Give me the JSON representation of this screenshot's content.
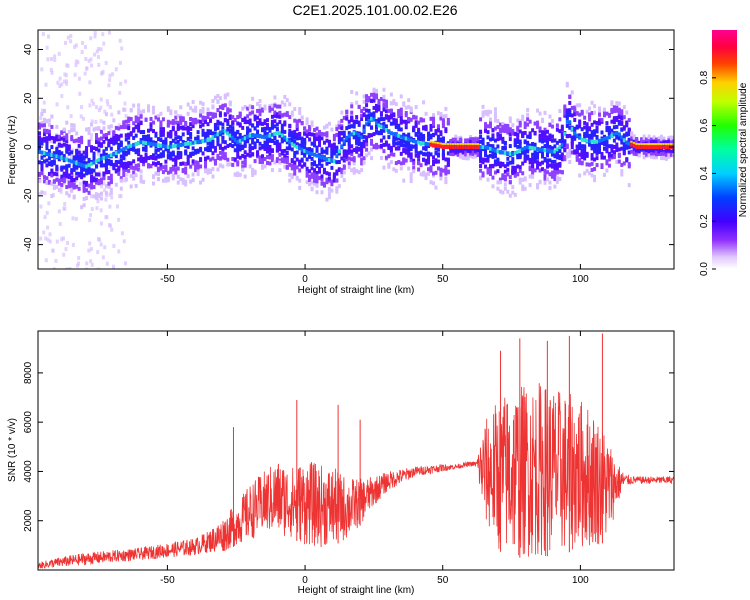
{
  "title": "C2E1.2025.101.00.02.E26",
  "chart_data": [
    {
      "type": "heatmap",
      "xlabel": "Height of straight line (km)",
      "ylabel": "Frequency (Hz)",
      "xlim": [
        -97,
        134
      ],
      "ylim": [
        -50,
        48
      ],
      "xticks": [
        -50,
        0,
        50,
        100
      ],
      "yticks": [
        -40,
        -20,
        0,
        20,
        40
      ],
      "colorbar": {
        "label": "Normalized spectral amplitude",
        "ticks": [
          "0.0",
          "0.2",
          "0.4",
          "0.6",
          "0.8"
        ],
        "range": [
          0,
          1
        ],
        "colormap": "magenta-blue-cyan-green-yellow-red-magenta (rainbow)"
      },
      "ridge": {
        "description": "peak frequency (Hz) vs height (km)",
        "x": [
          -97,
          -90,
          -85,
          -80,
          -75,
          -70,
          -65,
          -60,
          -55,
          -50,
          -45,
          -40,
          -35,
          -30,
          -25,
          -20,
          -15,
          -10,
          -5,
          0,
          5,
          10,
          14,
          16,
          18,
          20,
          22,
          24,
          26,
          28,
          30,
          35,
          40,
          45,
          50,
          55,
          60,
          65,
          70,
          75,
          80,
          85,
          90,
          93,
          95,
          97,
          100,
          105,
          110,
          113,
          116,
          120,
          125,
          134
        ],
        "y": [
          -2,
          -4,
          -6,
          -8,
          -5,
          -3,
          0,
          2,
          1,
          0,
          1,
          2,
          3,
          7,
          2,
          5,
          4,
          6,
          1,
          -2,
          -4,
          -6,
          3,
          5,
          6,
          4,
          10,
          12,
          9,
          8,
          6,
          4,
          2,
          1,
          0,
          0,
          0,
          0,
          -2,
          -3,
          0,
          -1,
          -2,
          1,
          12,
          6,
          3,
          2,
          4,
          6,
          2,
          0,
          0,
          0
        ]
      }
    },
    {
      "type": "line",
      "xlabel": "Height of straight line (km)",
      "ylabel": "SNR (10 * v/v)",
      "xlim": [
        -97,
        134
      ],
      "ylim": [
        0,
        9700
      ],
      "xticks": [
        -50,
        0,
        50,
        100
      ],
      "yticks": [
        2000,
        4000,
        6000,
        8000
      ],
      "color": "#ee3333",
      "envelope": {
        "description": "approximate SNR band (lower / upper) vs height (km)",
        "x": [
          -97,
          -90,
          -80,
          -70,
          -60,
          -50,
          -40,
          -35,
          -30,
          -25,
          -20,
          -15,
          -10,
          -5,
          0,
          5,
          10,
          15,
          20,
          25,
          30,
          40,
          50,
          55,
          60,
          62,
          65,
          70,
          75,
          80,
          85,
          90,
          95,
          100,
          105,
          110,
          113,
          116,
          120,
          125,
          134
        ],
        "lower": [
          50,
          100,
          200,
          300,
          400,
          500,
          600,
          700,
          700,
          1000,
          1200,
          1500,
          1400,
          1300,
          1000,
          900,
          1000,
          1200,
          1800,
          2600,
          3200,
          3800,
          4000,
          4100,
          4200,
          4200,
          2000,
          800,
          500,
          500,
          500,
          600,
          700,
          800,
          900,
          1200,
          2500,
          3400,
          3500,
          3500,
          3500
        ],
        "upper": [
          300,
          500,
          700,
          800,
          900,
          1100,
          1300,
          1600,
          2100,
          2700,
          3500,
          4000,
          4500,
          4200,
          4500,
          4300,
          4200,
          3800,
          3700,
          3800,
          4000,
          4200,
          4300,
          4300,
          4400,
          4400,
          6000,
          7000,
          7400,
          7600,
          7700,
          7500,
          7200,
          7000,
          6500,
          5500,
          4500,
          3900,
          3800,
          3800,
          3800
        ]
      },
      "spikes": [
        {
          "x": -26,
          "y": 5800
        },
        {
          "x": -3,
          "y": 6900
        },
        {
          "x": 12,
          "y": 6700
        },
        {
          "x": 20,
          "y": 6100
        },
        {
          "x": 71,
          "y": 8900
        },
        {
          "x": 78,
          "y": 9400
        },
        {
          "x": 88,
          "y": 9300
        },
        {
          "x": 96,
          "y": 9500
        },
        {
          "x": 108,
          "y": 9600
        }
      ]
    }
  ]
}
